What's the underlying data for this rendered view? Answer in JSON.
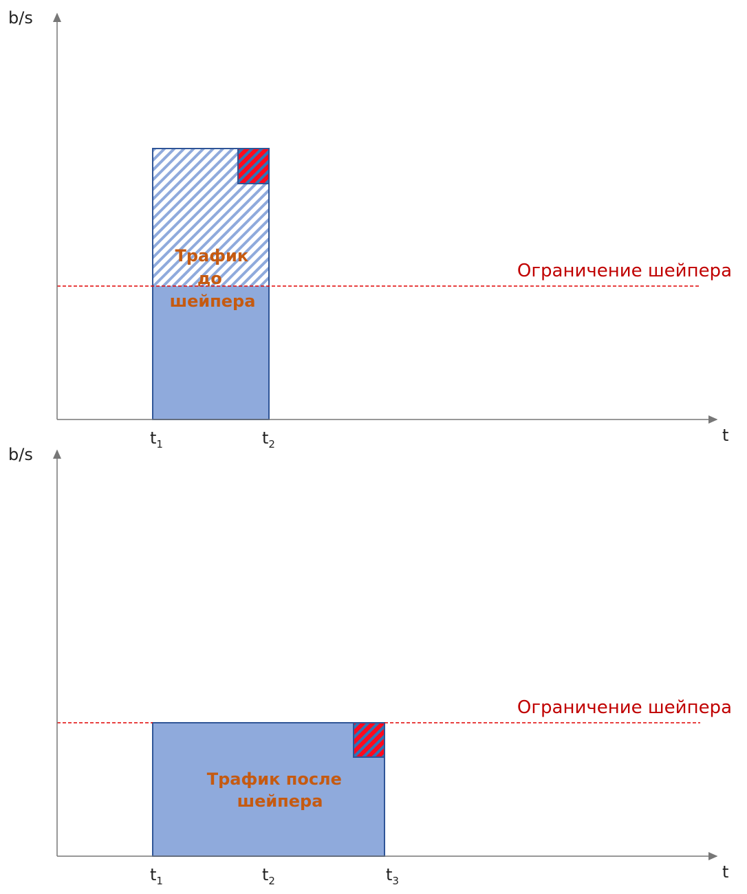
{
  "colors": {
    "traffic_fill": "#8faadc",
    "traffic_border": "#2f5597",
    "excess": "#ff0a1e",
    "excess_stripe": "#2e75b6",
    "limit": "#e00000",
    "limit_text": "#c00000",
    "traffic_text": "#c55a11"
  },
  "top": {
    "y_axis_label": "b/s",
    "x_axis_label": "t",
    "limit_label": "Ограничение шейпера",
    "traffic_label_lines": [
      "Трафик",
      "до",
      "шейпера"
    ],
    "ticks": [
      {
        "base": "t",
        "sub": "1"
      },
      {
        "base": "t",
        "sub": "2"
      }
    ]
  },
  "bottom": {
    "y_axis_label": "b/s",
    "x_axis_label": "t",
    "limit_label": "Ограничение шейпера",
    "traffic_label_lines": [
      "Трафик после",
      "шейпера"
    ],
    "ticks": [
      {
        "base": "t",
        "sub": "1"
      },
      {
        "base": "t",
        "sub": "2"
      },
      {
        "base": "t",
        "sub": "3"
      }
    ]
  }
}
